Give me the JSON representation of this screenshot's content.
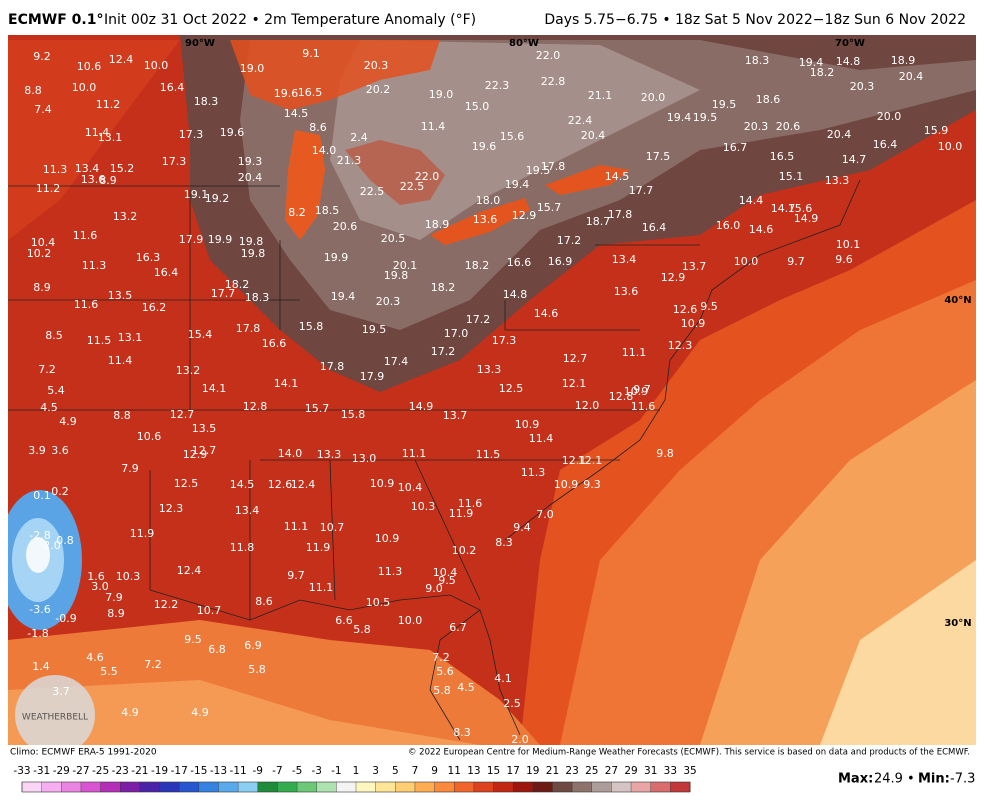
{
  "header": {
    "model": "ECMWF 0.1°",
    "title": "Init 00z 31 Oct 2022 • 2m Temperature Anomaly (°F)",
    "valid": "Days 5.75−6.75 • 18z Sat 5 Nov 2022−18z Sun 6 Nov 2022"
  },
  "map": {
    "graticule": [
      "90°W",
      "80°W",
      "70°W",
      "40°N",
      "30°N"
    ],
    "values": [
      "9.2",
      "12.4",
      "10.6",
      "10.0",
      "9.1",
      "19.0",
      "20.3",
      "22.0",
      "18.3",
      "19.4",
      "14.8",
      "18.9",
      "18.2",
      "20.4",
      "8.8",
      "10.0",
      "16.4",
      "18.3",
      "19.6",
      "16.5",
      "20.2",
      "19.0",
      "22.3",
      "22.8",
      "21.1",
      "20.0",
      "18.6",
      "19.5",
      "20.3",
      "7.4",
      "11.2",
      "14.5",
      "15.0",
      "19.4",
      "19.5",
      "20.0",
      "11.4",
      "13.1",
      "17.3",
      "19.6",
      "8.6",
      "2.4",
      "11.4",
      "15.6",
      "22.4",
      "20.4",
      "20.3",
      "20.6",
      "20.4",
      "15.9",
      "14.0",
      "19.6",
      "16.7",
      "16.4",
      "10.0",
      "11.3",
      "13.4",
      "15.2",
      "17.3",
      "19.3",
      "21.3",
      "22.0",
      "17.5",
      "16.5",
      "14.7",
      "17.8",
      "19.5",
      "13.6",
      "8.9",
      "20.4",
      "22.5",
      "19.4",
      "14.5",
      "15.1",
      "13.3",
      "11.2",
      "19.1",
      "19.2",
      "22.5",
      "17.7",
      "18.0",
      "14.4",
      "8.2",
      "18.5",
      "15.7",
      "12.9",
      "13.6",
      "18.7",
      "17.8",
      "14.7",
      "15.6",
      "14.9",
      "13.2",
      "11.6",
      "20.6",
      "18.9",
      "16.4",
      "16.0",
      "14.6",
      "10.4",
      "17.9",
      "19.9",
      "19.8",
      "20.5",
      "17.2",
      "10.1",
      "10.2",
      "19.8",
      "16.3",
      "19.9",
      "20.1",
      "16.6",
      "16.9",
      "13.4",
      "13.7",
      "10.0",
      "9.7",
      "9.6",
      "11.3",
      "16.4",
      "18.2",
      "19.8",
      "12.9",
      "8.9",
      "13.5",
      "18.2",
      "17.7",
      "18.3",
      "19.4",
      "18.2",
      "14.8",
      "13.6",
      "20.3",
      "11.6",
      "16.2",
      "14.6",
      "12.6",
      "9.5",
      "10.9",
      "8.5",
      "11.5",
      "13.1",
      "15.4",
      "17.8",
      "15.8",
      "19.5",
      "17.0",
      "17.2",
      "17.3",
      "16.6",
      "17.2",
      "12.3",
      "11.1",
      "7.2",
      "11.4",
      "13.2",
      "17.8",
      "17.4",
      "17.9",
      "13.3",
      "12.7",
      "14.1",
      "14.1",
      "12.1",
      "12.5",
      "12.8",
      "10.9",
      "9.7",
      "5.4",
      "4.5",
      "8.8",
      "12.7",
      "12.8",
      "15.7",
      "15.8",
      "14.9",
      "13.7",
      "12.0",
      "11.6",
      "4.9",
      "13.5",
      "10.9",
      "11.4",
      "10.6",
      "3.9",
      "3.6",
      "12.9",
      "12.7",
      "14.0",
      "13.3",
      "13.0",
      "11.1",
      "11.5",
      "12.1",
      "12.1",
      "9.8",
      "7.9",
      "11.3",
      "0.1",
      "0.2",
      "12.5",
      "14.5",
      "12.6",
      "12.4",
      "10.9",
      "10.4",
      "10.9",
      "9.3",
      "12.3",
      "13.4",
      "10.3",
      "11.6",
      "11.9",
      "7.0",
      "-2.8",
      "-2.0",
      "0.8",
      "11.9",
      "11.1",
      "10.7",
      "10.9",
      "9.4",
      "8.3",
      "11.8",
      "11.9",
      "10.2",
      "1.6",
      "3.0",
      "10.3",
      "12.4",
      "9.7",
      "11.3",
      "10.4",
      "9.5",
      "11.1",
      "9.0",
      "7.9",
      "8.9",
      "12.2",
      "10.7",
      "8.6",
      "10.5",
      "-3.6",
      "-0.9",
      "6.6",
      "5.8",
      "10.0",
      "6.7",
      "-1.8",
      "9.5",
      "6.8",
      "6.9",
      "4.6",
      "7.2",
      "1.4",
      "5.5",
      "7.2",
      "5.8",
      "5.6",
      "3.7",
      "5.8",
      "4.5",
      "4.1",
      "2.5",
      "4.9",
      "4.9",
      "8.3",
      "2.0"
    ]
  },
  "footer": {
    "climo": "Climo: ECMWF ERA-5 1991-2020",
    "copyright": "© 2022 European Centre for Medium-Range Weather Forecasts (ECMWF). This service is based on data and products of the ECMWF.",
    "logo": "WEATHERBELL"
  },
  "colorbar": {
    "ticks": [
      -33,
      -31,
      -29,
      -27,
      -25,
      -23,
      -21,
      -19,
      -17,
      -15,
      -13,
      -11,
      -9,
      -7,
      -5,
      -3,
      -1,
      1,
      3,
      5,
      7,
      9,
      11,
      13,
      15,
      17,
      19,
      21,
      23,
      25,
      27,
      29,
      31,
      33,
      35
    ],
    "colors": [
      "#fbd5f5",
      "#f5aeef",
      "#ec84e4",
      "#d855d2",
      "#b42eb8",
      "#7d1fa6",
      "#4b23a8",
      "#2b35b8",
      "#2556d0",
      "#3682e0",
      "#58aaeb",
      "#8ccdf4",
      "#1e8c3a",
      "#33ad4f",
      "#6cc978",
      "#ade3b0",
      "#f4f4f4",
      "#fff7c0",
      "#ffe596",
      "#ffcd72",
      "#ffac52",
      "#fb8a3c",
      "#f1652a",
      "#dc421c",
      "#c22714",
      "#9c160e",
      "#6e1a14",
      "#6e4a42",
      "#8e736c",
      "#ad9d98",
      "#d6c4c4",
      "#eaa6a6",
      "#d96c6c",
      "#c23838"
    ]
  },
  "stats": {
    "max_label": "Max:",
    "max": 24.9,
    "separator": "•",
    "min_label": "Min:",
    "min": -7.3
  }
}
